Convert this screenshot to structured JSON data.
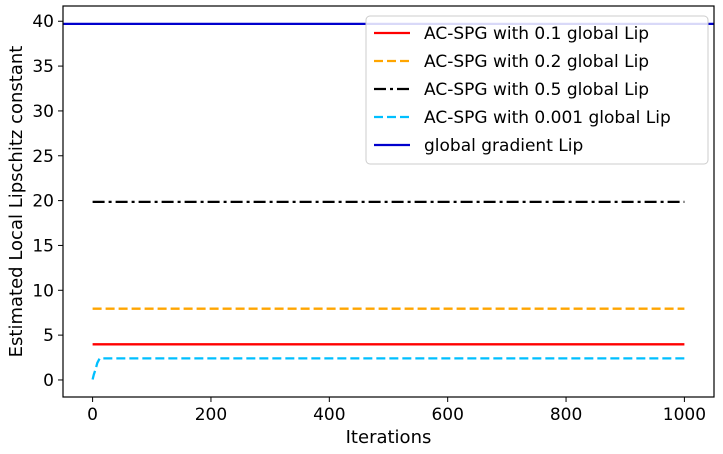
{
  "chart_data": {
    "type": "line",
    "xlabel": "Iterations",
    "ylabel": "Estimated Local Lipschitz constant",
    "xlim": [
      -50,
      1050
    ],
    "ylim": [
      -1.9,
      41.7
    ],
    "xticks": [
      0,
      200,
      400,
      600,
      800,
      1000
    ],
    "yticks": [
      0,
      5,
      10,
      15,
      20,
      25,
      30,
      35,
      40
    ],
    "grid": false,
    "legend_position": "top-right",
    "series": [
      {
        "name": "AC-SPG with 0.1 global Lip",
        "color": "#ff0000",
        "style": "solid",
        "x": [
          0,
          1000
        ],
        "y": [
          3.98,
          3.98
        ]
      },
      {
        "name": "AC-SPG with 0.2 global Lip",
        "color": "#ffa500",
        "style": "dashed",
        "x": [
          0,
          1000
        ],
        "y": [
          7.95,
          7.95
        ]
      },
      {
        "name": "AC-SPG with 0.5 global Lip",
        "color": "#000000",
        "style": "dashdot",
        "x": [
          0,
          1000
        ],
        "y": [
          19.85,
          19.85
        ]
      },
      {
        "name": "AC-SPG with 0.001 global Lip",
        "color": "#00bfff",
        "style": "dashed",
        "x": [
          0,
          2,
          5,
          8,
          12,
          1000
        ],
        "y": [
          0.05,
          0.6,
          1.2,
          1.9,
          2.4,
          2.4
        ]
      },
      {
        "name": "global gradient Lip",
        "color": "#0000cd",
        "style": "solid",
        "x": [
          -50,
          1050
        ],
        "y": [
          39.7,
          39.7
        ]
      }
    ]
  }
}
